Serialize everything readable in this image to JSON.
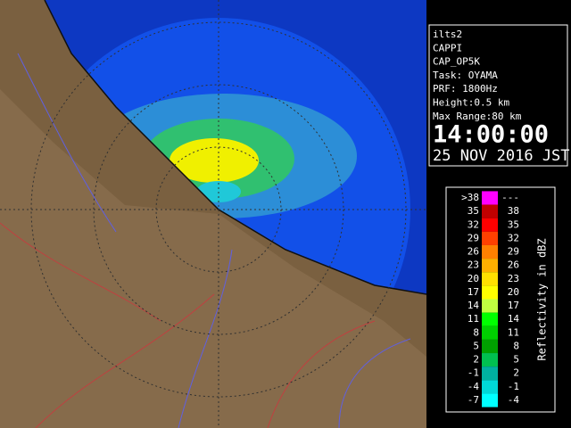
{
  "info": {
    "lines": [
      "ilts2",
      "CAPPI",
      "CAP_OP5K",
      "Task: OYAMA",
      "PRF: 1800Hz",
      "Height:0.5 km",
      "Max Range:80 km"
    ],
    "time": "14:00:00",
    "date": "25 NOV 2016 JST"
  },
  "legend": {
    "title": "Reflectivity in dBZ",
    "rows": [
      {
        "low": ">38",
        "high": "---",
        "color": "#ff00ff"
      },
      {
        "low": "35",
        "high": "38",
        "color": "#c00000"
      },
      {
        "low": "32",
        "high": "35",
        "color": "#ff0000"
      },
      {
        "low": "29",
        "high": "32",
        "color": "#ff4000"
      },
      {
        "low": "26",
        "high": "29",
        "color": "#ff8000"
      },
      {
        "low": "23",
        "high": "26",
        "color": "#ffb000"
      },
      {
        "low": "20",
        "high": "23",
        "color": "#ffe000"
      },
      {
        "low": "17",
        "high": "20",
        "color": "#ffff00"
      },
      {
        "low": "14",
        "high": "17",
        "color": "#c0ff40"
      },
      {
        "low": "11",
        "high": "14",
        "color": "#00ff00"
      },
      {
        "low": "8",
        "high": "11",
        "color": "#00d000"
      },
      {
        "low": "5",
        "high": "8",
        "color": "#00a000"
      },
      {
        "low": "2",
        "high": "5",
        "color": "#00c050"
      },
      {
        "low": "-1",
        "high": "2",
        "color": "#00b0a0"
      },
      {
        "low": "-4",
        "high": "-1",
        "color": "#00d8d8"
      },
      {
        "low": "-7",
        "high": "-4",
        "color": "#00ffff"
      }
    ]
  }
}
